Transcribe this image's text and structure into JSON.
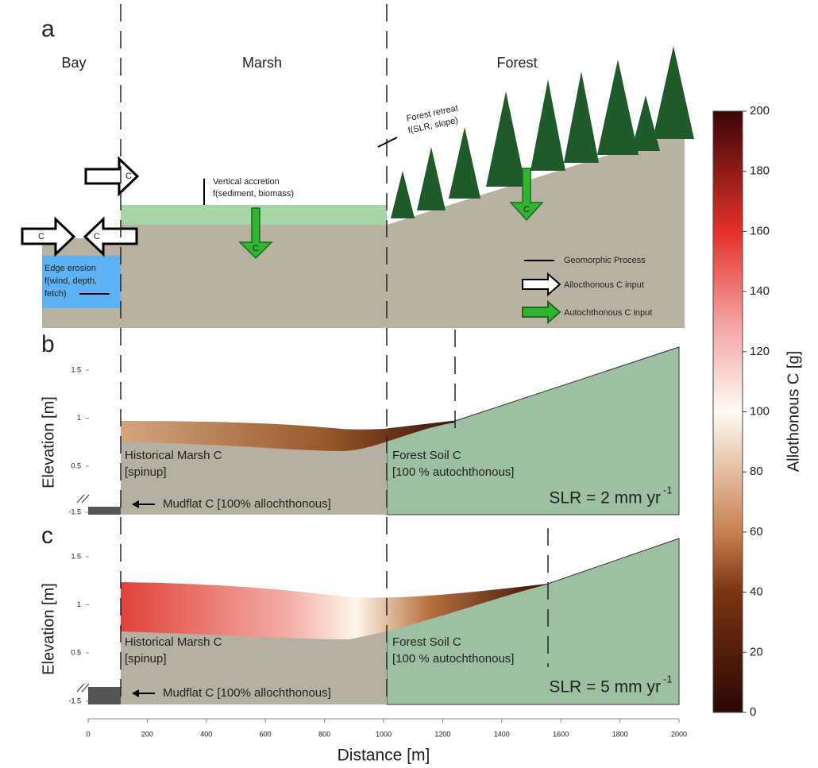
{
  "panel_a": {
    "label": "a",
    "zones": [
      "Bay",
      "Marsh",
      "Forest"
    ],
    "forest_retreat": [
      "Forest retreat",
      "f(SLR, slope)"
    ],
    "vertical_accretion": [
      "Vertical accretion",
      "f(sediment, biomass)"
    ],
    "edge_erosion": [
      "Edge erosion",
      "f(wind, depth,",
      "fetch)"
    ],
    "arrow_letter": "C",
    "legend": [
      "Geomorphic Process",
      "Allocthonous C input",
      "Autochthonous C input"
    ]
  },
  "panels": [
    {
      "label": "b",
      "y_label": "Elevation [m]",
      "yticks": [
        -1.5,
        0.5,
        1,
        1.5
      ],
      "marsh_label": [
        "Historical Marsh C",
        "[spinup]"
      ],
      "forest_label": [
        "Forest Soil C",
        "[100 % autochthonous]"
      ],
      "mudflat_label": "Mudflat C [100% allochthonous]",
      "slr_label": "SLR = 2 mm yr",
      "slr_exponent": "-1"
    },
    {
      "label": "c",
      "y_label": "Elevation [m]",
      "yticks": [
        -1.5,
        0.5,
        1,
        1.5
      ],
      "marsh_label": [
        "Historical Marsh C",
        "[spinup]"
      ],
      "forest_label": [
        "Forest Soil C",
        "[100 % autochthonous]"
      ],
      "mudflat_label": "Mudflat C [100% allochthonous]",
      "slr_label": "SLR = 5 mm yr",
      "slr_exponent": "-1"
    }
  ],
  "x_axis": {
    "label": "Distance [m]",
    "lim": [
      0,
      2000
    ],
    "ticks": [
      0,
      200,
      400,
      600,
      800,
      1000,
      1200,
      1400,
      1600,
      1800,
      2000
    ]
  },
  "colorbar": {
    "label": "Allothonous C [g]",
    "lim": [
      0,
      200
    ],
    "ticks": [
      0,
      20,
      40,
      60,
      80,
      100,
      120,
      140,
      160,
      180,
      200
    ]
  }
}
